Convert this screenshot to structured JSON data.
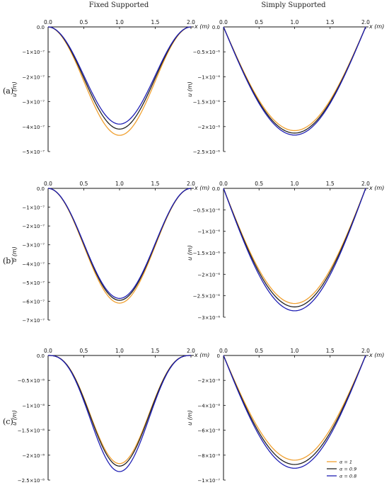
{
  "column_titles": [
    "Fixed Supported",
    "Simply Supported"
  ],
  "row_labels": [
    "(a)",
    "(b)",
    "(c)"
  ],
  "legend": [
    {
      "label": "α = 1",
      "color": "#f0a030"
    },
    {
      "label": "α = 0.9",
      "color": "#222222"
    },
    {
      "label": "α = 0.8",
      "color": "#1f1fb4"
    }
  ],
  "chart_data": [
    {
      "id": "a-fixed",
      "type": "line",
      "xlabel": "x (m)",
      "ylabel": "u (m)",
      "xlim": [
        0,
        2
      ],
      "ylim": [
        -5e-07,
        0
      ],
      "xticks": [
        "0.0",
        "0.5",
        "1.0",
        "1.5",
        "2.0"
      ],
      "yticks": [
        {
          "v": 0,
          "t": "0.0"
        },
        {
          "v": -1e-07,
          "t": "−1×10⁻⁷"
        },
        {
          "v": -2e-07,
          "t": "−2×10⁻⁷"
        },
        {
          "v": -3e-07,
          "t": "−3×10⁻⁷"
        },
        {
          "v": -4e-07,
          "t": "−4×10⁻⁷"
        },
        {
          "v": -5e-07,
          "t": "−5×10⁻⁷"
        }
      ],
      "shape": "fixed",
      "series": [
        {
          "name": "α = 1",
          "min": -4.35e-07
        },
        {
          "name": "α = 0.9",
          "min": -4.1e-07
        },
        {
          "name": "α = 0.8",
          "min": -3.9e-07
        }
      ]
    },
    {
      "id": "a-simply",
      "type": "line",
      "xlabel": "x (m)",
      "ylabel": "u (m)",
      "xlim": [
        0,
        2
      ],
      "ylim": [
        -2.5e-06,
        0
      ],
      "xticks": [
        "0.0",
        "0.5",
        "1.0",
        "1.5",
        "2.0"
      ],
      "yticks": [
        {
          "v": 0,
          "t": "0.0"
        },
        {
          "v": -5e-07,
          "t": "−0.5×10⁻⁶"
        },
        {
          "v": -1e-06,
          "t": "−1×10⁻⁶"
        },
        {
          "v": -1.5e-06,
          "t": "−1.5×10⁻⁶"
        },
        {
          "v": -2e-06,
          "t": "−2×10⁻⁶"
        },
        {
          "v": -2.5e-06,
          "t": "−2.5×10⁻⁶"
        }
      ],
      "shape": "simply",
      "series": [
        {
          "name": "α = 1",
          "min": -2.08e-06
        },
        {
          "name": "α = 0.9",
          "min": -2.13e-06
        },
        {
          "name": "α = 0.8",
          "min": -2.17e-06
        }
      ]
    },
    {
      "id": "b-fixed",
      "type": "line",
      "xlabel": "x (m)",
      "ylabel": "u (m)",
      "xlim": [
        0,
        2
      ],
      "ylim": [
        -7e-07,
        0
      ],
      "xticks": [
        "0.0",
        "0.5",
        "1.0",
        "1.5",
        "2.0"
      ],
      "yticks": [
        {
          "v": 0,
          "t": "0.0"
        },
        {
          "v": -1e-07,
          "t": "−1×10⁻⁷"
        },
        {
          "v": -2e-07,
          "t": "−2×10⁻⁷"
        },
        {
          "v": -3e-07,
          "t": "−3×10⁻⁷"
        },
        {
          "v": -4e-07,
          "t": "−4×10⁻⁷"
        },
        {
          "v": -5e-07,
          "t": "−5×10⁻⁷"
        },
        {
          "v": -6e-07,
          "t": "−6×10⁻⁷"
        },
        {
          "v": -7e-07,
          "t": "−7×10⁻⁷"
        }
      ],
      "shape": "fixed",
      "series": [
        {
          "name": "α = 1",
          "min": -6.1e-07
        },
        {
          "name": "α = 0.9",
          "min": -5.95e-07
        },
        {
          "name": "α = 0.8",
          "min": -5.85e-07
        }
      ]
    },
    {
      "id": "b-simply",
      "type": "line",
      "xlabel": "x (m)",
      "ylabel": "u (m)",
      "xlim": [
        0,
        2
      ],
      "ylim": [
        -3e-06,
        0
      ],
      "xticks": [
        "0.0",
        "0.5",
        "1.0",
        "1.5",
        "2.0"
      ],
      "yticks": [
        {
          "v": 0,
          "t": "0.0"
        },
        {
          "v": -5e-07,
          "t": "−0.5×10⁻⁶"
        },
        {
          "v": -1e-06,
          "t": "−1×10⁻⁶"
        },
        {
          "v": -1.5e-06,
          "t": "−1.5×10⁻⁶"
        },
        {
          "v": -2e-06,
          "t": "−2×10⁻⁶"
        },
        {
          "v": -2.5e-06,
          "t": "−2.5×10⁻⁶"
        },
        {
          "v": -3e-06,
          "t": "−3×10⁻⁶"
        }
      ],
      "shape": "simply",
      "series": [
        {
          "name": "α = 1",
          "min": -2.68e-06
        },
        {
          "name": "α = 0.9",
          "min": -2.76e-06
        },
        {
          "name": "α = 0.8",
          "min": -2.85e-06
        }
      ]
    },
    {
      "id": "c-fixed",
      "type": "line",
      "xlabel": "x (m)",
      "ylabel": "u (m)",
      "xlim": [
        0,
        2
      ],
      "ylim": [
        -2.5e-08,
        0
      ],
      "xticks": [
        "0.0",
        "0.5",
        "1.0",
        "1.5",
        "2.0"
      ],
      "yticks": [
        {
          "v": 0,
          "t": "0.0"
        },
        {
          "v": -5e-09,
          "t": "−0.5×10⁻⁸"
        },
        {
          "v": -1e-08,
          "t": "−1×10⁻⁸"
        },
        {
          "v": -1.5e-08,
          "t": "−1.5×10⁻⁸"
        },
        {
          "v": -2e-08,
          "t": "−2×10⁻⁸"
        },
        {
          "v": -2.5e-08,
          "t": "−2.5×10⁻⁸"
        }
      ],
      "shape": "fixedsharp",
      "series": [
        {
          "name": "α = 1",
          "min": -2.17e-08
        },
        {
          "name": "α = 0.9",
          "min": -2.22e-08
        },
        {
          "name": "α = 0.8",
          "min": -2.33e-08
        }
      ]
    },
    {
      "id": "c-simply",
      "type": "line",
      "xlabel": "x (m)",
      "ylabel": "u (m)",
      "xlim": [
        0,
        2
      ],
      "ylim": [
        -1e-07,
        0
      ],
      "xticks": [
        "0.0",
        "0.5",
        "1.0",
        "1.5",
        "2.0"
      ],
      "yticks": [
        {
          "v": 0,
          "t": "0"
        },
        {
          "v": -2e-08,
          "t": "−2×10⁻⁸"
        },
        {
          "v": -4e-08,
          "t": "−4×10⁻⁸"
        },
        {
          "v": -6e-08,
          "t": "−6×10⁻⁸"
        },
        {
          "v": -8e-08,
          "t": "−8×10⁻⁸"
        },
        {
          "v": -1e-07,
          "t": "−1×10⁻⁷"
        }
      ],
      "shape": "simply",
      "legend": true,
      "series": [
        {
          "name": "α = 1",
          "min": -8.4e-08
        },
        {
          "name": "α = 0.9",
          "min": -8.75e-08
        },
        {
          "name": "α = 0.8",
          "min": -9.05e-08
        }
      ]
    }
  ]
}
